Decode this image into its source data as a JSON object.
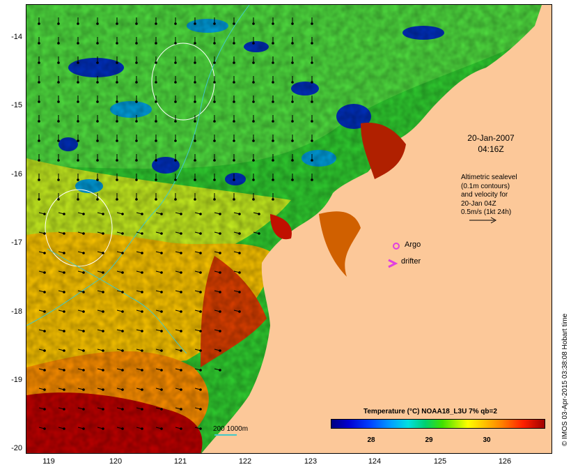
{
  "map": {
    "date_line1": "20-Jan-2007",
    "date_line2": "04:16Z",
    "sealevel_lines": [
      "Altimetric sealevel",
      "(0.1m contours)",
      "and velocity for",
      "20-Jan 04Z",
      "0.5m/s (1kt 24h)"
    ],
    "argo_label": "Argo",
    "drifter_label": "drifter",
    "scale_label": "200  1000m",
    "colorbar_title": "Temperature (°C) NOAA18_L3U 7% qb=2",
    "colorbar_ticks": [
      "28",
      "29",
      "30"
    ],
    "credit": "© IMOS 03-Apr-2015 03:38:08 Hobart time",
    "colors": {
      "land": "#fcc899",
      "argo": "#e040e0",
      "drifter": "#e040e0",
      "contour_cyan": "#40c8c8"
    }
  },
  "axes": {
    "x_ticks": [
      "119",
      "120",
      "121",
      "122",
      "123",
      "124",
      "125",
      "126"
    ],
    "y_ticks": [
      "-14",
      "-15",
      "-16",
      "-17",
      "-18",
      "-19",
      "-20"
    ],
    "lon_range": [
      118.6,
      126.7
    ],
    "lat_range": [
      -20.1,
      -13.6
    ]
  }
}
